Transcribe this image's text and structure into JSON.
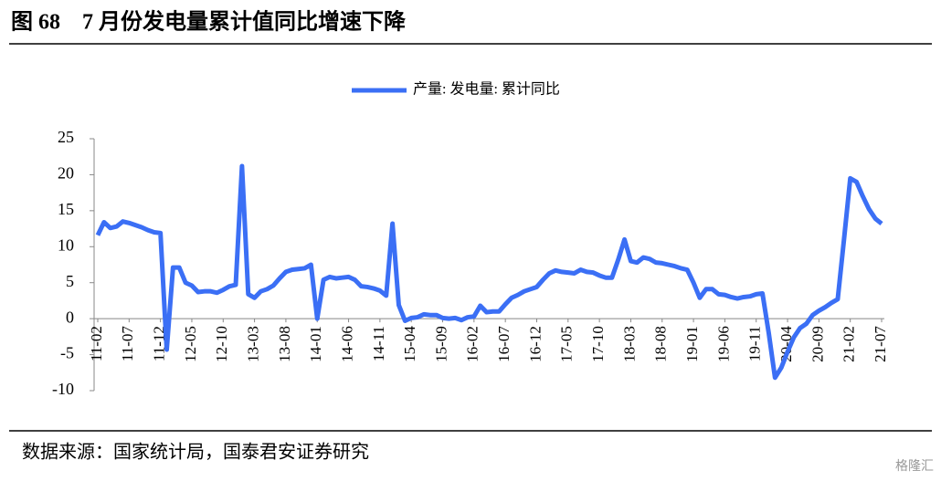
{
  "chart_data": {
    "type": "line",
    "title": "图 68　7 月份发电量累计值同比增速下降",
    "source": "数据来源：国家统计局，国泰君安证券研究",
    "watermark": "格隆汇",
    "categories": [
      "11-02",
      null,
      null,
      null,
      null,
      "11-07",
      null,
      null,
      null,
      null,
      "11-12",
      null,
      null,
      null,
      null,
      "12-05",
      null,
      null,
      null,
      null,
      "12-10",
      null,
      null,
      null,
      null,
      "13-03",
      null,
      null,
      null,
      null,
      "13-08",
      null,
      null,
      null,
      null,
      "14-01",
      null,
      null,
      null,
      null,
      "14-06",
      null,
      null,
      null,
      null,
      "14-11",
      null,
      null,
      null,
      null,
      "15-04",
      null,
      null,
      null,
      null,
      "15-09",
      null,
      null,
      null,
      null,
      "16-02",
      null,
      null,
      null,
      null,
      "16-07",
      null,
      null,
      null,
      null,
      "16-12",
      null,
      null,
      null,
      null,
      "17-05",
      null,
      null,
      null,
      null,
      "17-10",
      null,
      null,
      null,
      null,
      "18-03",
      null,
      null,
      null,
      null,
      "18-08",
      null,
      null,
      null,
      null,
      "19-01",
      null,
      null,
      null,
      null,
      "19-06",
      null,
      null,
      null,
      null,
      "19-11",
      null,
      null,
      null,
      null,
      "20-04",
      null,
      null,
      null,
      null,
      "20-09",
      null,
      null,
      null,
      null,
      "21-02",
      null,
      null,
      null,
      null,
      "21-07"
    ],
    "series": [
      {
        "name": "产量: 发电量: 累计同比",
        "color": "#3b6ff5",
        "values": [
          11.6,
          13.4,
          12.6,
          12.8,
          13.5,
          13.3,
          13.0,
          12.7,
          12.3,
          12.0,
          11.9,
          -4.3,
          7.1,
          7.1,
          5.0,
          4.6,
          3.7,
          3.8,
          3.8,
          3.6,
          4.0,
          4.5,
          4.7,
          21.2,
          3.4,
          2.9,
          3.8,
          4.1,
          4.6,
          5.6,
          6.5,
          6.8,
          6.9,
          7.0,
          7.5,
          0,
          5.4,
          5.8,
          5.6,
          5.7,
          5.8,
          5.4,
          4.5,
          4.4,
          4.2,
          3.9,
          3.2,
          13.2,
          1.9,
          -0.3,
          0.1,
          0.2,
          0.6,
          0.5,
          0.5,
          0.1,
          0,
          0.1,
          -0.2,
          0.2,
          0.3,
          1.8,
          0.9,
          1.0,
          1.0,
          2.0,
          2.9,
          3.3,
          3.8,
          4.1,
          4.4,
          5.4,
          6.3,
          6.7,
          6.5,
          6.4,
          6.3,
          6.8,
          6.5,
          6.4,
          6.0,
          5.7,
          5.7,
          8.2,
          11.0,
          8.0,
          7.8,
          8.5,
          8.3,
          7.8,
          7.7,
          7.5,
          7.3,
          7.0,
          6.8,
          5.0,
          2.9,
          4.1,
          4.1,
          3.4,
          3.3,
          3.0,
          2.8,
          3.0,
          3.1,
          3.4,
          3.5,
          -2.0,
          -8.2,
          -6.8,
          -4.6,
          -2.6,
          -1.3,
          -0.7,
          0.5,
          1.1,
          1.6,
          2.2,
          2.7,
          11.0,
          19.5,
          19.0,
          17.0,
          15.2,
          13.9,
          13.2
        ]
      }
    ],
    "ylim": [
      -10,
      25
    ],
    "yticks": [
      -10,
      -5,
      0,
      5,
      10,
      15,
      20,
      25
    ],
    "grid": false,
    "legend": "top"
  }
}
